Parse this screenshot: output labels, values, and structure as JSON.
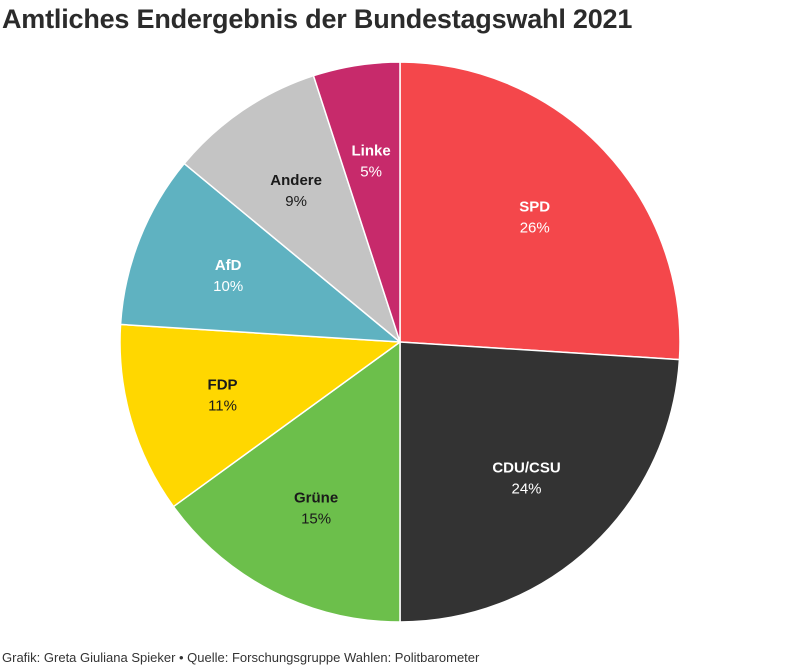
{
  "title": "Amtliches Endergebnis der Bundestagswahl 2021",
  "footer": "Grafik: Greta Giuliana Spieker • Quelle: Forschungsgruppe Wahlen: Politbarometer",
  "chart_data": {
    "type": "pie",
    "title": "Amtliches Endergebnis der Bundestagswahl 2021",
    "slices": [
      {
        "name": "SPD",
        "value": 26,
        "label": "26%",
        "color": "#f4474b",
        "label_color": "#ffffff"
      },
      {
        "name": "CDU/CSU",
        "value": 24,
        "label": "24%",
        "color": "#333333",
        "label_color": "#ffffff"
      },
      {
        "name": "Grüne",
        "value": 15,
        "label": "15%",
        "color": "#6cbf4b",
        "label_color": "#1a1a1a"
      },
      {
        "name": "FDP",
        "value": 11,
        "label": "11%",
        "color": "#ffd700",
        "label_color": "#1a1a1a"
      },
      {
        "name": "AfD",
        "value": 10,
        "label": "10%",
        "color": "#5fb2c1",
        "label_color": "#ffffff"
      },
      {
        "name": "Andere",
        "value": 9,
        "label": "9%",
        "color": "#c4c4c4",
        "label_color": "#1a1a1a"
      },
      {
        "name": "Linke",
        "value": 5,
        "label": "5%",
        "color": "#c72a6b",
        "label_color": "#ffffff"
      }
    ],
    "start_angle_deg": 0,
    "direction": "clockwise",
    "legend": "none"
  }
}
